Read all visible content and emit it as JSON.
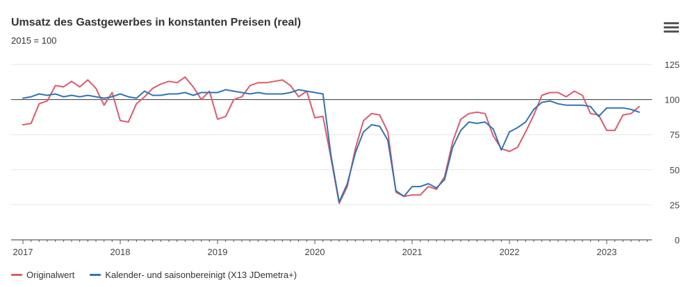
{
  "header": {
    "title": "Umsatz des Gastgewerbes in konstanten Preisen (real)",
    "subtitle": "2015 = 100"
  },
  "menu": {
    "icon": "hamburger-menu-icon"
  },
  "legend": {
    "items": [
      {
        "label": "Originalwert",
        "color": "#e4566a"
      },
      {
        "label": "Kalender- und saisonbereinigt (X13 JDemetra+)",
        "color": "#2f73b5"
      }
    ]
  },
  "chart_data": {
    "type": "line",
    "title": "Umsatz des Gastgewerbes in konstanten Preisen (real)",
    "subtitle": "2015 = 100",
    "xlabel": "",
    "ylabel": "",
    "ylim": [
      0,
      125
    ],
    "yticks": [
      0,
      25,
      50,
      75,
      100,
      125
    ],
    "reference_line": 100,
    "grid": true,
    "legend_position": "bottom-left",
    "x_start": "2017-01",
    "x_tick_labels": [
      "2017",
      "2018",
      "2019",
      "2020",
      "2021",
      "2022",
      "2023"
    ],
    "series": [
      {
        "name": "Originalwert",
        "color": "#e4566a",
        "values": [
          82,
          83,
          97,
          99,
          110,
          109,
          113,
          109,
          114,
          108,
          96,
          105,
          85,
          84,
          97,
          102,
          108,
          111,
          113,
          112,
          116,
          109,
          100,
          106,
          86,
          88,
          100,
          102,
          110,
          112,
          112,
          113,
          114,
          110,
          102,
          106,
          87,
          88,
          58,
          26,
          38,
          65,
          85,
          90,
          89,
          77,
          34,
          31,
          32,
          32,
          38,
          36,
          45,
          70,
          86,
          90,
          91,
          90,
          74,
          65,
          63,
          66,
          77,
          89,
          103,
          105,
          105,
          102,
          106,
          103,
          90,
          89,
          78,
          78,
          89,
          90,
          95
        ]
      },
      {
        "name": "Kalender- und saisonbereinigt (X13 JDemetra+)",
        "color": "#2f73b5",
        "values": [
          101,
          102,
          104,
          103,
          104,
          102,
          103,
          102,
          103,
          102,
          101,
          102,
          104,
          102,
          101,
          106,
          103,
          103,
          104,
          104,
          105,
          103,
          105,
          105,
          105,
          107,
          106,
          105,
          104,
          105,
          104,
          104,
          104,
          105,
          107,
          106,
          105,
          104,
          60,
          27,
          40,
          62,
          77,
          82,
          81,
          71,
          35,
          31,
          38,
          38,
          40,
          37,
          43,
          66,
          78,
          84,
          83,
          84,
          79,
          64,
          77,
          80,
          84,
          93,
          98,
          99,
          97,
          96,
          96,
          96,
          95,
          88,
          94,
          94,
          94,
          93,
          91
        ]
      }
    ]
  }
}
